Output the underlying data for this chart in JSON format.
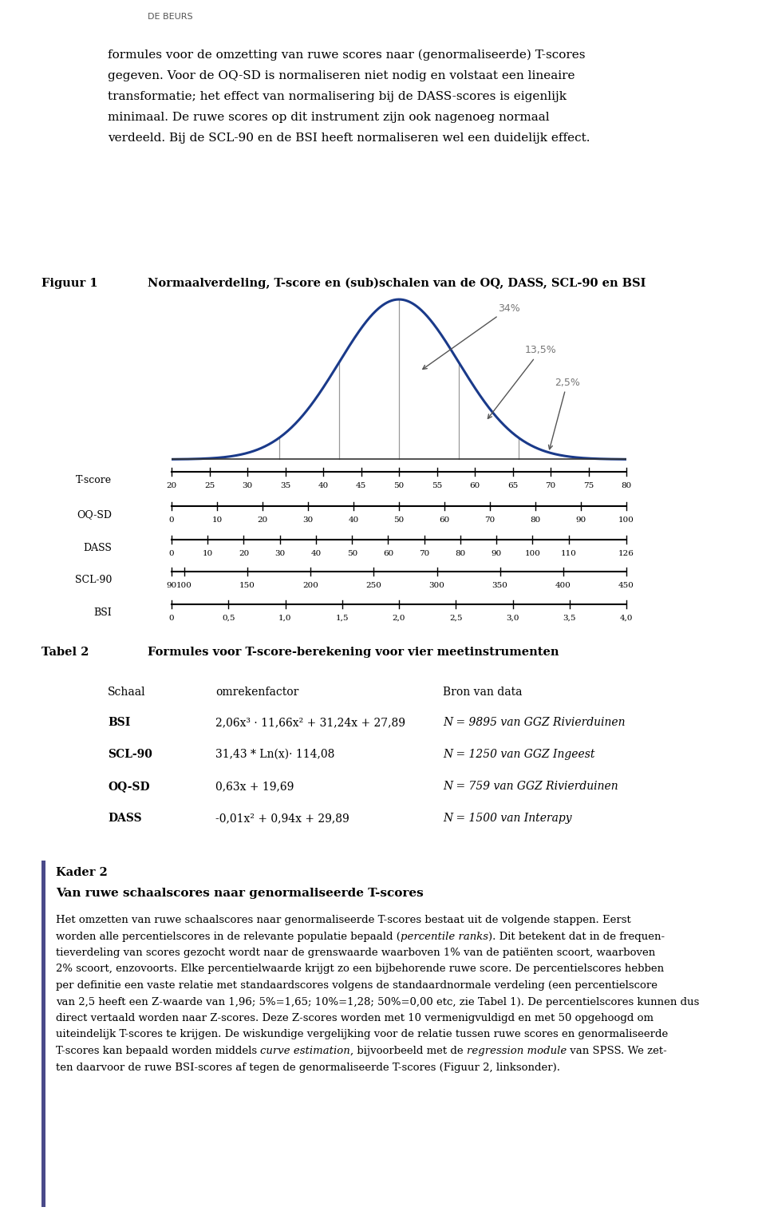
{
  "header": "DE BEURS",
  "intro_lines": [
    "formules voor de omzetting van ruwe scores naar (genormaliseerde) T-scores",
    "gegeven. Voor de OQ-SD is normaliseren niet nodig en volstaat een lineaire",
    "transformatie; het effect van normalisering bij de DASS-scores is eigenlijk",
    "minimaal. De ruwe scores op dit instrument zijn ook nagenoeg normaal",
    "verdeeld. Bij de SCL-90 en de BSI heeft normaliseren wel een duidelijk effect."
  ],
  "figuur_label": "Figuur 1",
  "figuur_title": "Normaalverdeling, T-score en (sub)schalen van de OQ, DASS, SCL-90 en BSI",
  "bell_color": "#1a3a8a",
  "vline_color": "#8a8a8a",
  "scales": [
    {
      "label": "T-score",
      "ticks": [
        20,
        25,
        30,
        35,
        40,
        45,
        50,
        55,
        60,
        65,
        70,
        75,
        80
      ]
    },
    {
      "label": "OQ-SD",
      "ticks": [
        0,
        10,
        20,
        30,
        40,
        50,
        60,
        70,
        80,
        90,
        100
      ]
    },
    {
      "label": "DASS",
      "ticks": [
        0,
        10,
        20,
        30,
        40,
        50,
        60,
        70,
        80,
        90,
        100,
        110,
        126
      ]
    },
    {
      "label": "SCL-90",
      "ticks": [
        90,
        100,
        150,
        200,
        250,
        300,
        350,
        400,
        450
      ]
    },
    {
      "label": "BSI",
      "ticks": [
        0,
        0.5,
        1.0,
        1.5,
        2.0,
        2.5,
        3.0,
        3.5,
        4.0
      ]
    }
  ],
  "tabel_label": "Tabel 2",
  "tabel_title": "Formules voor T-score-berekening voor vier meetinstrumenten",
  "table_headers": [
    "Schaal",
    "omrekenfactor",
    "Bron van data"
  ],
  "table_rows": [
    [
      "BSI",
      "2,06x³ · 11,66x² + 31,24x + 27,89",
      "N = 9895 van GGZ Rivierduinen"
    ],
    [
      "SCL-90",
      "31,43 * Ln(x)· 114,08",
      "N = 1250 van GGZ Ingeest"
    ],
    [
      "OQ-SD",
      "0,63x + 19,69",
      "N = 759 van GGZ Rivierduinen"
    ],
    [
      "DASS",
      "-0,01x² + 0,94x + 29,89",
      "N = 1500 van Interapy"
    ]
  ],
  "kader_label": "Kader 2",
  "kader_title": "Van ruwe schaalscores naar genormaliseerde T-scores",
  "kader_body_plain": [
    "Het omzetten van ruwe schaalscores naar genormaliseerde T-scores bestaat uit de volgende stappen. Eerst",
    "worden alle percentielscores in de relevante populatie bepaald (",
    "percentile ranks",
    "). Dit betekent dat in de frequen-",
    "tieverdeling van scores gezocht wordt naar de grenswaarde waarboven 1% van de patiënten scoort, waarboven",
    "2% scoort, enzovoorts. Elke percentielwaarde krijgt zo een bijbehorende ruwe score. De percentielscores hebben",
    "per definitie een vaste relatie met standaardscores volgens de standaardnormale verdeling (een percentielscore",
    "van 2,5 heeft een Z-waarde van 1,96; 5%=1,65; 10%=1,28; 50%=0,00 etc, zie Tabel 1). De percentielscores kunnen dus",
    "direct vertaald worden naar Z-scores. Deze Z-scores worden met 10 vermenigvuldigd en met 50 opgehoogd om",
    "uiteindelijk T-scores te krijgen. De wiskundige vergelijking voor de relatie tussen ruwe scores en genormaliseerde",
    "T-scores kan bepaald worden middels ",
    "curve estimation",
    ", bijvoorbeeld met de ",
    "regression module",
    " van SPSS. We zet-",
    "ten daarvoor de ruwe BSI-scores af tegen de genormaliseerde T-scores (Figuur 2, linksonder)."
  ],
  "left_bar_color": "#4a4a8a",
  "background_color": "#ffffff"
}
